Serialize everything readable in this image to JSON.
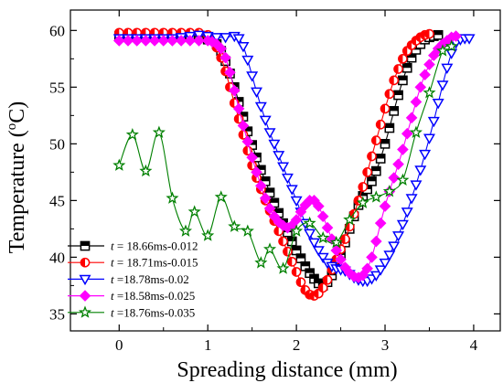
{
  "chart_data": {
    "type": "line",
    "title": "",
    "xlabel": "Spreading distance (mm)",
    "ylabel_parts": [
      "Temperature (",
      "o",
      "C)"
    ],
    "xlim": [
      -0.55,
      4.3
    ],
    "ylim": [
      33.5,
      61.8
    ],
    "xticks": [
      0,
      1,
      2,
      3,
      4
    ],
    "yticks": [
      35,
      40,
      45,
      50,
      55,
      60
    ],
    "grid": false,
    "legend_position": "bottom-left",
    "series": [
      {
        "name": "t = 18.66ms-0.012",
        "color": "#000000",
        "marker": "square",
        "x": [
          0.0,
          0.1,
          0.2,
          0.3,
          0.4,
          0.5,
          0.6,
          0.7,
          0.8,
          0.9,
          1.0,
          1.1,
          1.15,
          1.2,
          1.25,
          1.3,
          1.35,
          1.4,
          1.45,
          1.5,
          1.55,
          1.6,
          1.65,
          1.7,
          1.75,
          1.8,
          1.85,
          1.9,
          1.95,
          2.0,
          2.05,
          2.1,
          2.15,
          2.2,
          2.25,
          2.3,
          2.35,
          2.4,
          2.45,
          2.5,
          2.55,
          2.6,
          2.65,
          2.7,
          2.75,
          2.8,
          2.85,
          2.9,
          2.95,
          3.0,
          3.05,
          3.1,
          3.15,
          3.2,
          3.25,
          3.3,
          3.35,
          3.4,
          3.45,
          3.5,
          3.55,
          3.6
        ],
        "y": [
          59.5,
          59.5,
          59.5,
          59.5,
          59.5,
          59.5,
          59.5,
          59.5,
          59.5,
          59.4,
          59.2,
          58.8,
          58.2,
          57.3,
          56.2,
          55.0,
          53.7,
          52.4,
          51.1,
          49.9,
          48.8,
          47.7,
          46.7,
          45.7,
          44.8,
          43.9,
          43.0,
          42.2,
          41.4,
          40.6,
          39.9,
          39.2,
          38.6,
          38.1,
          37.7,
          37.5,
          37.8,
          38.4,
          39.2,
          40.2,
          41.3,
          42.5,
          43.6,
          44.6,
          45.4,
          46.0,
          46.7,
          47.6,
          48.7,
          50.0,
          51.4,
          52.9,
          54.3,
          55.6,
          56.7,
          57.6,
          58.3,
          58.8,
          59.2,
          59.4,
          59.5,
          59.6
        ]
      },
      {
        "name": "t = 18.71ms-0.015",
        "color": "#ff0000",
        "marker": "circle-half",
        "x": [
          0.0,
          0.1,
          0.2,
          0.3,
          0.4,
          0.5,
          0.6,
          0.7,
          0.8,
          0.9,
          1.0,
          1.05,
          1.1,
          1.15,
          1.2,
          1.25,
          1.3,
          1.35,
          1.4,
          1.45,
          1.5,
          1.55,
          1.6,
          1.65,
          1.7,
          1.75,
          1.8,
          1.85,
          1.9,
          1.95,
          2.0,
          2.05,
          2.1,
          2.15,
          2.2,
          2.25,
          2.3,
          2.35,
          2.4,
          2.45,
          2.5,
          2.55,
          2.6,
          2.65,
          2.7,
          2.75,
          2.8,
          2.85,
          2.9,
          2.95,
          3.0,
          3.05,
          3.1,
          3.15,
          3.2,
          3.25,
          3.3,
          3.35,
          3.4,
          3.45,
          3.5
        ],
        "y": [
          59.8,
          59.8,
          59.8,
          59.8,
          59.8,
          59.8,
          59.8,
          59.8,
          59.8,
          59.8,
          59.6,
          59.2,
          58.5,
          57.6,
          56.4,
          55.0,
          53.6,
          52.2,
          50.8,
          49.4,
          48.1,
          47.0,
          46.0,
          45.0,
          44.1,
          43.2,
          42.3,
          41.4,
          40.5,
          39.6,
          38.7,
          37.8,
          37.1,
          36.7,
          36.6,
          36.8,
          37.3,
          38.0,
          38.9,
          39.8,
          40.7,
          41.6,
          42.7,
          43.8,
          45.0,
          46.2,
          47.5,
          48.9,
          50.3,
          51.7,
          53.1,
          54.4,
          55.6,
          56.6,
          57.5,
          58.2,
          58.7,
          59.1,
          59.4,
          59.6,
          59.7
        ]
      },
      {
        "name": "t =18.78ms-0.02",
        "color": "#0000ff",
        "marker": "triangle-down",
        "x": [
          0.0,
          0.1,
          0.2,
          0.3,
          0.4,
          0.5,
          0.6,
          0.7,
          0.8,
          0.9,
          1.0,
          1.1,
          1.2,
          1.3,
          1.35,
          1.4,
          1.45,
          1.5,
          1.55,
          1.6,
          1.65,
          1.7,
          1.75,
          1.8,
          1.85,
          1.9,
          1.95,
          2.0,
          2.05,
          2.1,
          2.15,
          2.2,
          2.25,
          2.3,
          2.35,
          2.4,
          2.45,
          2.5,
          2.55,
          2.6,
          2.65,
          2.7,
          2.75,
          2.8,
          2.85,
          2.9,
          2.95,
          3.0,
          3.05,
          3.1,
          3.15,
          3.2,
          3.25,
          3.3,
          3.35,
          3.4,
          3.45,
          3.5,
          3.55,
          3.6,
          3.65,
          3.7,
          3.75,
          3.8,
          3.85,
          3.9,
          3.95
        ],
        "y": [
          59.3,
          59.3,
          59.3,
          59.3,
          59.3,
          59.3,
          59.3,
          59.4,
          59.5,
          59.6,
          59.5,
          59.4,
          59.4,
          59.5,
          59.3,
          58.6,
          57.4,
          56.0,
          54.6,
          53.3,
          52.1,
          51.0,
          50.0,
          49.0,
          48.0,
          47.0,
          46.0,
          45.0,
          44.0,
          43.0,
          42.1,
          41.3,
          40.6,
          40.0,
          39.5,
          39.2,
          39.0,
          38.9,
          38.8,
          38.5,
          38.2,
          38.0,
          37.9,
          37.9,
          38.1,
          38.4,
          38.9,
          39.5,
          40.2,
          41.0,
          41.9,
          42.9,
          44.0,
          45.2,
          46.4,
          47.7,
          49.1,
          50.5,
          52.0,
          53.6,
          55.2,
          56.7,
          58.0,
          58.9,
          59.2,
          59.3,
          59.3
        ]
      },
      {
        "name": "t =18.58ms-0.025",
        "color": "#ff00ff",
        "marker": "diamond",
        "x": [
          0.0,
          0.1,
          0.2,
          0.3,
          0.4,
          0.5,
          0.6,
          0.7,
          0.8,
          0.9,
          1.0,
          1.05,
          1.1,
          1.15,
          1.2,
          1.25,
          1.3,
          1.35,
          1.4,
          1.45,
          1.5,
          1.55,
          1.6,
          1.65,
          1.7,
          1.75,
          1.8,
          1.85,
          1.9,
          1.95,
          2.0,
          2.05,
          2.1,
          2.15,
          2.2,
          2.25,
          2.3,
          2.35,
          2.4,
          2.45,
          2.5,
          2.55,
          2.6,
          2.65,
          2.7,
          2.75,
          2.8,
          2.85,
          2.9,
          2.95,
          3.0,
          3.05,
          3.1,
          3.15,
          3.2,
          3.25,
          3.3,
          3.35,
          3.4,
          3.45,
          3.5,
          3.55,
          3.6,
          3.65,
          3.7,
          3.75,
          3.8
        ],
        "y": [
          59.1,
          59.1,
          59.1,
          59.1,
          59.1,
          59.1,
          59.1,
          59.1,
          59.1,
          59.1,
          59.1,
          59.0,
          58.8,
          58.4,
          57.6,
          56.3,
          54.7,
          53.1,
          51.6,
          50.2,
          48.8,
          47.5,
          46.3,
          45.2,
          44.3,
          43.6,
          43.1,
          42.8,
          42.6,
          42.8,
          43.3,
          44.0,
          44.6,
          45.0,
          45.0,
          44.5,
          43.6,
          42.6,
          41.6,
          40.6,
          39.8,
          39.1,
          38.6,
          38.3,
          38.2,
          38.4,
          39.0,
          40.0,
          41.4,
          43.0,
          44.5,
          45.8,
          47.0,
          48.2,
          49.5,
          50.9,
          52.3,
          53.7,
          55.0,
          56.1,
          57.0,
          57.8,
          58.4,
          58.8,
          59.1,
          59.4,
          59.5
        ]
      },
      {
        "name": "t =18.76ms-0.035",
        "color": "#008000",
        "marker": "star",
        "x": [
          0.0,
          0.15,
          0.3,
          0.45,
          0.6,
          0.75,
          0.85,
          1.0,
          1.15,
          1.3,
          1.45,
          1.6,
          1.7,
          1.85,
          2.0,
          2.15,
          2.3,
          2.45,
          2.6,
          2.75,
          2.9,
          3.05,
          3.2,
          3.35,
          3.5,
          3.65,
          3.75
        ],
        "y": [
          48.1,
          50.8,
          47.6,
          51.0,
          45.2,
          42.3,
          44.0,
          41.9,
          45.3,
          42.7,
          42.3,
          39.5,
          40.7,
          39.0,
          42.3,
          43.0,
          41.7,
          41.3,
          43.3,
          44.8,
          45.3,
          45.8,
          46.8,
          51.0,
          54.5,
          58.2,
          58.6
        ]
      }
    ]
  }
}
